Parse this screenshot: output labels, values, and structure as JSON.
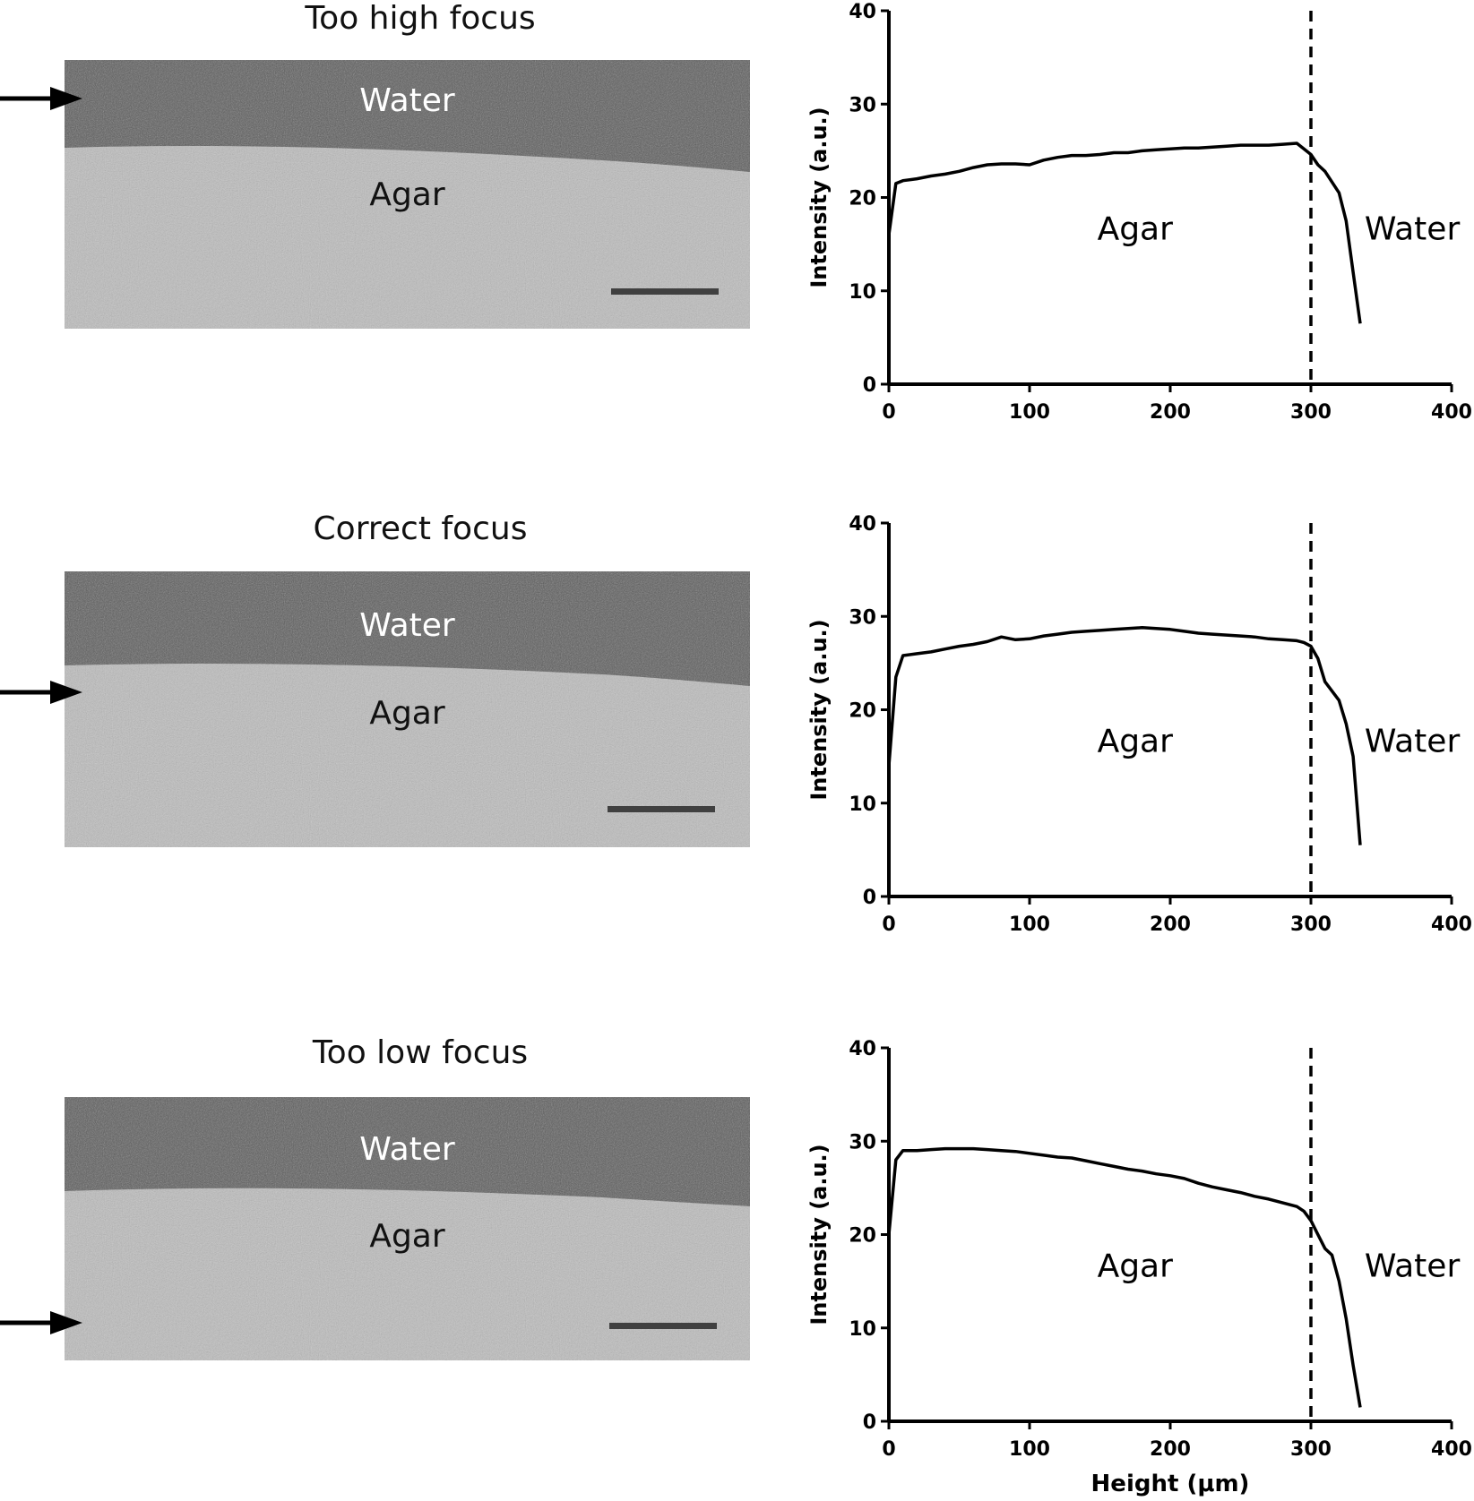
{
  "panels": [
    {
      "title": "Too high focus",
      "water_label": "Water",
      "agar_label": "Agar"
    },
    {
      "title": "Correct focus",
      "water_label": "Water",
      "agar_label": "Agar"
    },
    {
      "title": "Too low focus",
      "water_label": "Water",
      "agar_label": "Agar"
    }
  ],
  "chart_data": [
    {
      "type": "line",
      "title": "",
      "xlabel": "",
      "ylabel": "Intensity (a.u.)",
      "xlim": [
        0,
        400
      ],
      "ylim": [
        0,
        40
      ],
      "xticks": [
        0,
        100,
        200,
        300,
        400
      ],
      "yticks": [
        0,
        10,
        20,
        30,
        40
      ],
      "grid": false,
      "annotations": {
        "left": "Agar",
        "right": "Water",
        "vline_x": 300
      },
      "series": [
        {
          "x": [
            0,
            5,
            10,
            20,
            30,
            40,
            50,
            60,
            70,
            80,
            90,
            100,
            110,
            120,
            130,
            140,
            150,
            160,
            170,
            180,
            190,
            200,
            210,
            220,
            230,
            240,
            250,
            260,
            270,
            280,
            290,
            295,
            300,
            305,
            310,
            320,
            325,
            330,
            335
          ],
          "y": [
            16,
            21.5,
            21.8,
            22,
            22.3,
            22.5,
            22.8,
            23.2,
            23.5,
            23.6,
            23.6,
            23.5,
            24,
            24.3,
            24.5,
            24.5,
            24.6,
            24.8,
            24.8,
            25,
            25.1,
            25.2,
            25.3,
            25.3,
            25.4,
            25.5,
            25.6,
            25.6,
            25.6,
            25.7,
            25.8,
            25.2,
            24.6,
            23.5,
            22.8,
            20.5,
            17.5,
            12,
            6.5
          ]
        }
      ]
    },
    {
      "type": "line",
      "title": "",
      "xlabel": "",
      "ylabel": "Intensity (a.u.)",
      "xlim": [
        0,
        400
      ],
      "ylim": [
        0,
        40
      ],
      "xticks": [
        0,
        100,
        200,
        300,
        400
      ],
      "yticks": [
        0,
        10,
        20,
        30,
        40
      ],
      "grid": false,
      "annotations": {
        "left": "Agar",
        "right": "Water",
        "vline_x": 300
      },
      "series": [
        {
          "x": [
            0,
            5,
            10,
            20,
            30,
            40,
            50,
            60,
            70,
            80,
            90,
            100,
            110,
            120,
            130,
            140,
            150,
            160,
            170,
            180,
            190,
            200,
            210,
            220,
            230,
            240,
            250,
            260,
            270,
            280,
            290,
            295,
            300,
            305,
            310,
            320,
            325,
            330,
            335
          ],
          "y": [
            14,
            23.5,
            25.8,
            26,
            26.2,
            26.5,
            26.8,
            27,
            27.3,
            27.8,
            27.5,
            27.6,
            27.9,
            28.1,
            28.3,
            28.4,
            28.5,
            28.6,
            28.7,
            28.8,
            28.7,
            28.6,
            28.4,
            28.2,
            28.1,
            28,
            27.9,
            27.8,
            27.6,
            27.5,
            27.4,
            27.2,
            26.8,
            25.5,
            23,
            21,
            18.5,
            15,
            5.5
          ]
        }
      ]
    },
    {
      "type": "line",
      "title": "",
      "xlabel": "Height (μm)",
      "ylabel": "Intensity (a.u.)",
      "xlim": [
        0,
        400
      ],
      "ylim": [
        0,
        40
      ],
      "xticks": [
        0,
        100,
        200,
        300,
        400
      ],
      "yticks": [
        0,
        10,
        20,
        30,
        40
      ],
      "grid": false,
      "annotations": {
        "left": "Agar",
        "right": "Water",
        "vline_x": 300
      },
      "series": [
        {
          "x": [
            0,
            5,
            10,
            20,
            30,
            40,
            50,
            60,
            70,
            80,
            90,
            100,
            110,
            120,
            130,
            140,
            150,
            160,
            170,
            180,
            190,
            200,
            210,
            220,
            230,
            240,
            250,
            260,
            270,
            280,
            290,
            295,
            300,
            305,
            310,
            315,
            320,
            325,
            330,
            335
          ],
          "y": [
            20,
            28,
            29,
            29,
            29.1,
            29.2,
            29.2,
            29.2,
            29.1,
            29,
            28.9,
            28.7,
            28.5,
            28.3,
            28.2,
            27.9,
            27.6,
            27.3,
            27,
            26.8,
            26.5,
            26.3,
            26,
            25.5,
            25.1,
            24.8,
            24.5,
            24.1,
            23.8,
            23.4,
            23,
            22.5,
            21.5,
            20,
            18.5,
            17.8,
            15,
            11,
            6,
            1.5
          ]
        }
      ]
    }
  ]
}
